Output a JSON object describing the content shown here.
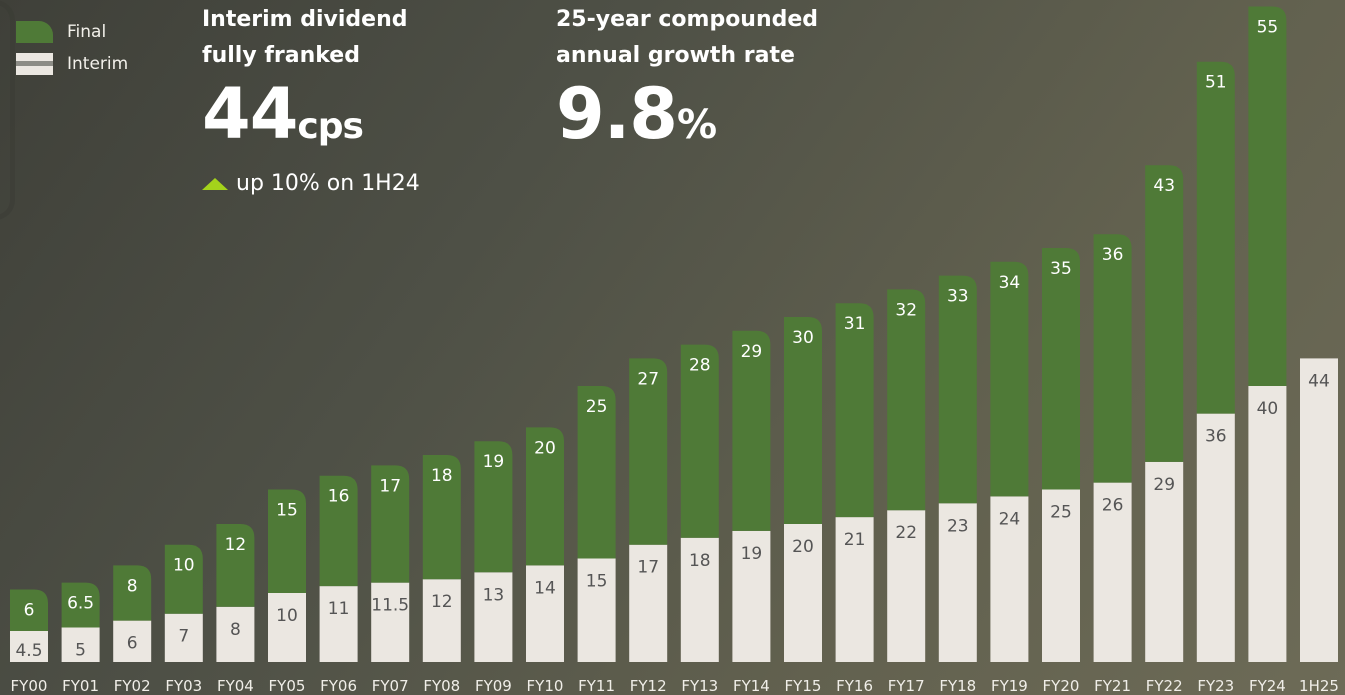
{
  "legend": {
    "final_label": "Final",
    "interim_label": "Interim"
  },
  "stat_interim": {
    "line1": "Interim dividend",
    "line2": "fully franked",
    "value": "44",
    "unit": "cps",
    "note": "up 10% on 1H24"
  },
  "stat_cagr": {
    "line1": "25-year compounded",
    "line2": "annual growth rate",
    "value": "9.8",
    "unit": "%"
  },
  "colors": {
    "final": "#4f7a37",
    "interim": "#ebe7e1",
    "final_label": "#ffffff",
    "interim_label": "#555555",
    "accent_triangle": "#a4d31b"
  },
  "chart_data": {
    "type": "bar",
    "stacked": true,
    "categories": [
      "FY00",
      "FY01",
      "FY02",
      "FY03",
      "FY04",
      "FY05",
      "FY06",
      "FY07",
      "FY08",
      "FY09",
      "FY10",
      "FY11",
      "FY12",
      "FY13",
      "FY14",
      "FY15",
      "FY16",
      "FY17",
      "FY18",
      "FY19",
      "FY20",
      "FY21",
      "FY22",
      "FY23",
      "FY24",
      "1H25"
    ],
    "series": [
      {
        "name": "Interim",
        "values": [
          4.5,
          5,
          6,
          7,
          8,
          10,
          11,
          11.5,
          12,
          13,
          14,
          15,
          17,
          18,
          19,
          20,
          21,
          22,
          23,
          24,
          25,
          26,
          29,
          36,
          40,
          44
        ]
      },
      {
        "name": "Final",
        "values": [
          6,
          6.5,
          8,
          10,
          12,
          15,
          16,
          17,
          18,
          19,
          20,
          25,
          27,
          28,
          29,
          30,
          31,
          32,
          33,
          34,
          35,
          36,
          43,
          51,
          55,
          null
        ]
      }
    ],
    "labels": {
      "Interim": [
        "4.5",
        "5",
        "6",
        "7",
        "8",
        "10",
        "11",
        "11.5",
        "12",
        "13",
        "14",
        "15",
        "17",
        "18",
        "19",
        "20",
        "21",
        "22",
        "23",
        "24",
        "25",
        "26",
        "29",
        "36",
        "40",
        "44"
      ],
      "Final": [
        "6",
        "6.5",
        "8",
        "10",
        "12",
        "15",
        "16",
        "17",
        "18",
        "19",
        "20",
        "25",
        "27",
        "28",
        "29",
        "30",
        "31",
        "32",
        "33",
        "34",
        "35",
        "36",
        "43",
        "51",
        "55",
        ""
      ]
    },
    "ylim": [
      0,
      95
    ],
    "grid": false
  }
}
